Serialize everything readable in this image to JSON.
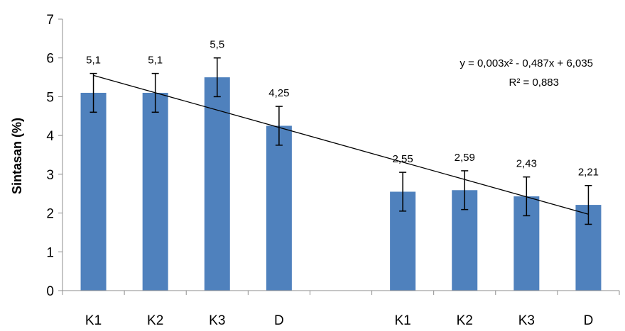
{
  "chart_data": {
    "type": "bar",
    "categories": [
      "K1",
      "K2",
      "K3",
      "D",
      "",
      "K1",
      "K2",
      "K3",
      "D"
    ],
    "values": [
      5.1,
      5.1,
      5.5,
      4.25,
      null,
      2.55,
      2.59,
      2.43,
      2.21
    ],
    "data_labels": [
      "5,1",
      "5,1",
      "5,5",
      "4,25",
      "",
      "2,55",
      "2,59",
      "2,43",
      "2,21"
    ],
    "error": 0.5,
    "ylabel": "Sintasan (%)",
    "xlabel": "",
    "ylim": [
      0,
      7
    ],
    "yticks": [
      "0",
      "1",
      "2",
      "3",
      "4",
      "5",
      "6",
      "7"
    ],
    "bar_color": "#4f81bd",
    "trendline": {
      "type": "polynomial",
      "equation": "y = 0,003x² - 0,487x + 6,035",
      "r2": "R² = 0,883",
      "from": [
        1,
        5.55
      ],
      "to": [
        9,
        1.97
      ]
    },
    "grid": false,
    "legend": "none"
  }
}
